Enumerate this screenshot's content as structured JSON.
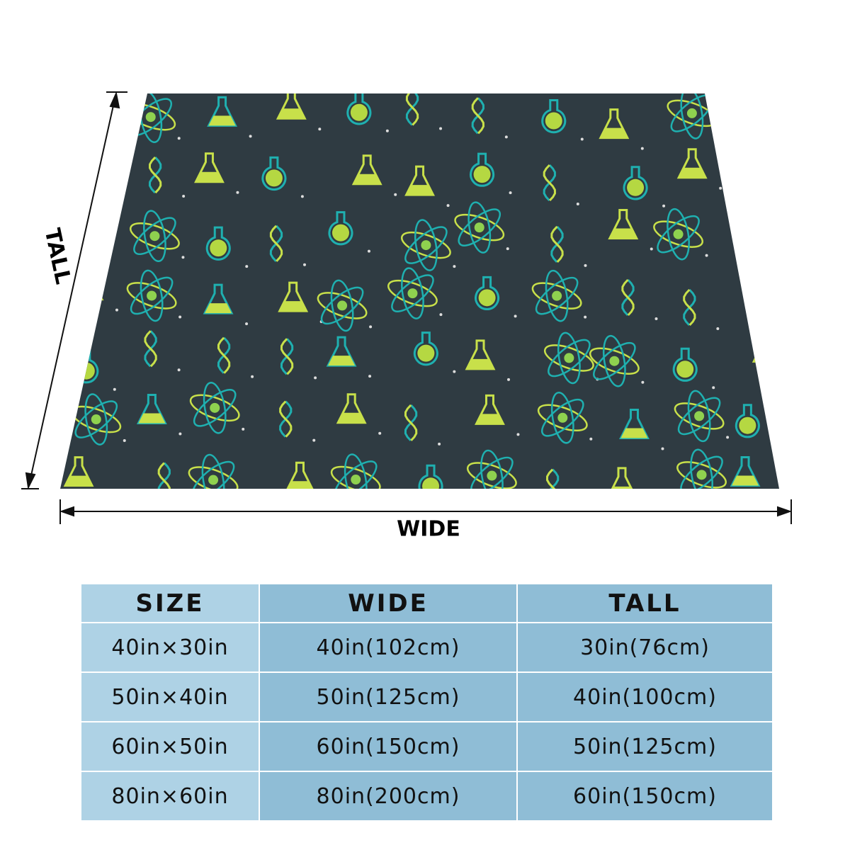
{
  "dimensions": {
    "tall": "TALL",
    "wide": "WIDE"
  },
  "table": {
    "header": [
      "SIZE",
      "WIDE",
      "TALL"
    ],
    "rows": [
      [
        "40in×30in",
        "40in(102cm)",
        "30in(76cm)"
      ],
      [
        "50in×40in",
        "50in(125cm)",
        "40in(100cm)"
      ],
      [
        "60in×50in",
        "60in(150cm)",
        "50in(125cm)"
      ],
      [
        "80in×60in",
        "80in(200cm)",
        "60in(150cm)"
      ]
    ]
  }
}
